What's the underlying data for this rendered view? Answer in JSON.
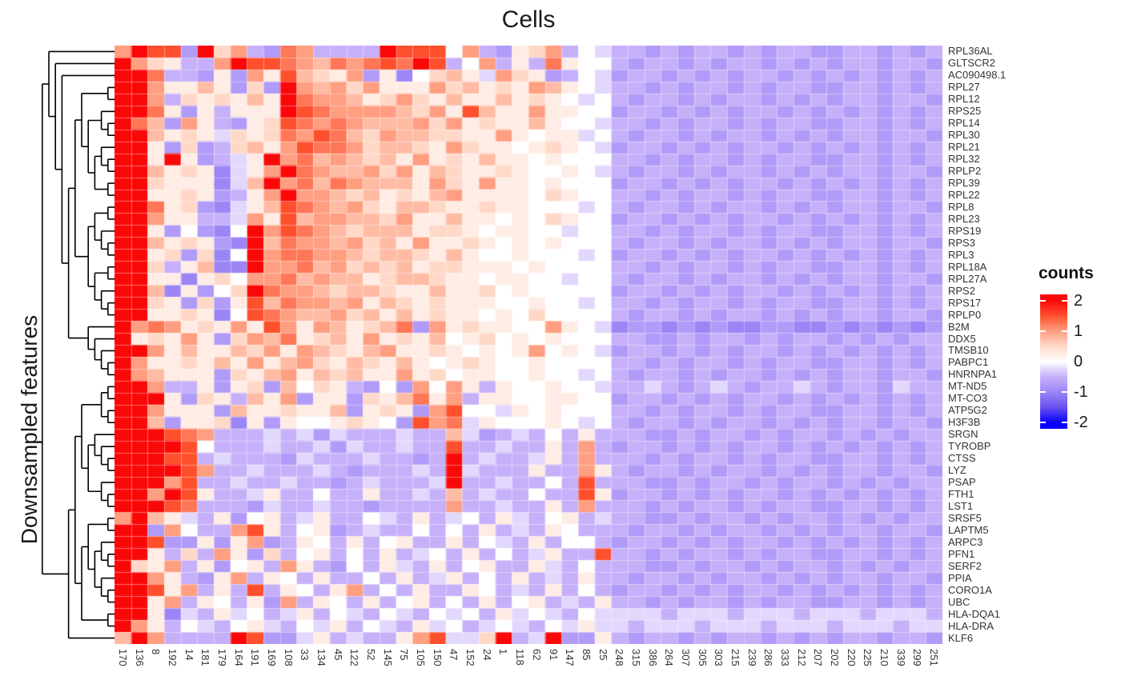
{
  "title": "Cells",
  "ylabel": "Downsampled features",
  "legend": {
    "title": "counts",
    "ticks": [
      {
        "label": "2",
        "value": 2
      },
      {
        "label": "1",
        "value": 1
      },
      {
        "label": "0",
        "value": 0
      },
      {
        "label": "-1",
        "value": -1
      },
      {
        "label": "-2",
        "value": -2
      }
    ],
    "range": [
      -2.2,
      2.2
    ]
  },
  "chart_data": {
    "type": "heatmap",
    "title": "Cells",
    "ylabel": "Downsampled features",
    "legend_title": "counts",
    "value_range": [
      -2,
      2
    ],
    "columns": [
      "170",
      "136",
      "8",
      "192",
      "14",
      "181",
      "179",
      "164",
      "191",
      "169",
      "108",
      "33",
      "134",
      "45",
      "122",
      "52",
      "145",
      "75",
      "105",
      "150",
      "47",
      "152",
      "24",
      "1",
      "118",
      "62",
      "91",
      "147",
      "85",
      "25",
      "248",
      "315",
      "386",
      "264",
      "307",
      "305",
      "303",
      "215",
      "239",
      "286",
      "333",
      "212",
      "207",
      "202",
      "220",
      "225",
      "210",
      "339",
      "299",
      "251"
    ],
    "rows": [
      "RPL36AL",
      "GLTSCR2",
      "AC090498.1",
      "RPL27",
      "RPL12",
      "RPS25",
      "RPL14",
      "RPL30",
      "RPL21",
      "RPL32",
      "RPLP2",
      "RPL39",
      "RPL22",
      "RPL8",
      "RPL23",
      "RPS19",
      "RPS3",
      "RPL3",
      "RPL18A",
      "RPL27A",
      "RPS2",
      "RPS17",
      "RPLP0",
      "B2M",
      "DDX5",
      "TMSB10",
      "PABPC1",
      "HNRNPA1",
      "MT-ND5",
      "MT-CO3",
      "ATP5G2",
      "H3F3B",
      "SRGN",
      "TYROBP",
      "CTSS",
      "LYZ",
      "PSAP",
      "FTH1",
      "LST1",
      "SRSF5",
      "LAPTM5",
      "ARPC3",
      "PFN1",
      "SERF2",
      "PPIA",
      "CORO1A",
      "UBC",
      "HLA-DQA1",
      "HLA-DRA",
      "KLF6"
    ],
    "value_encoding": "each matrix string has one char per column; char set 0123456789ABCDEFG maps to value=(index-8)*0.25, so 0=-2.0, 4=-1.0, 8=0.0, C=1.0, G=2.0 (scaled counts)",
    "matrix": [
      "CGEE5GAC65DC6666GEEE8C659AC68766565665656655665656",
      "GCA966CGEEDCBDCDEDGE68C696D98865665656656565665665",
      "GGD66595C9EBA9C5948AB97CA9568756656565665656565656",
      "GGC99B95A5GCBCAC999CAB9A9CB98766565665656655665656",
      "GGC6A9A9B9GDCCB9ACA9B99B9A987865665656656565665665",
      "GGD9596999GEDCCCCBAC9EB99C998856656565665656565656",
      "GDB5C9659AEDCDCBBBCAC9A99B988766565665656655665656",
      "GGB9A97A9ADCEDBACBBAA99C98997865665656656565665665",
      "GG95A56AB9CEDDCABBA9CA9989A98756656565665656565656",
      "GG9G95679GCDBCBAB9C9A9B998988866565665656655665656",
      "GGB9A9479CGDCBBCAC9BA99A98898765665656656565665665",
      "GGA99947BGCDBDCBBB9CA9C998988856656565665656565656",
      "GG99A9569CGCCBAB9A9BC99998A98866565665656655665656",
      "GGD9A5479BEDCBCA9BBA99A998887865665656656565665665",
      "GGC99667C9EBCCBBAC99B99898A98856656565665656565656",
      "GG958548GCEDCBABBB9AA98998878866565665656655665656",
      "GGB9A954GBDCCBCAB9C99A9898988865665656656565665665",
      "GG9A5A48GCDDCCBABBA9B98898887856656565665656565656",
      "GGA69B44GCCDBCABAB9AA99989888866565665656655665656",
      "GG9949A8CCDBCBB9ABBA998998878865665656656565665665",
      "GGB4958AGDCCBABBA99B99A898888856656565665656565656",
      "GGA95A59EBDCCBC9BA9A999889887866565665656655665656",
      "GG99A948EDCBBCAB9B9A99898A888865665656656565665665",
      "GCDC9A9C9EC9CB9ABD5C9A9988C98745545454455445454545",
      "G9A9C95ACBD9AB9C9A9B89A898988866556566565665656566",
      "GGC9B99BAC9CBA9BC99A98989C898756656565665656565656",
      "GC99A9B9C9BCA9BA9B989A9889888866565665656655665656",
      "GCB9995A9BC9BAB99C9A899889887865665656656565665665",
      "GGC66959A5B8A96585C8C96988988766765676566765665766",
      "GGG95A96B9C5995A9BD9C69988998856656565665656565656",
      "GGC9995B99A99B59A95CE88798988866565665656655665656",
      "GGB599A4959889A985ECD79888987865665656656565665665",
      "GGGEDC66676757666766B75676869666556566565665656566",
      "GGGGE866676675766766E6676696C656656565665656565656",
      "GGGEE676665766676656G6766796C666565665656655665656",
      "GGGGEC66766676566676G7666966C965665656656565665665",
      "GGGCE667667665676667G6676686E666556566565665656566",
      "GGCGE966796686696676B6766866E956656565665656565656",
      "GGGED666576676656666C6676696C666565665656655665656",
      "CGB97695896796687696786976896766556566565665656566",
      "GG5C866CE96895676686869676986665665656656565665665",
      "GGE55959C56986968966968769688656656565665656565656",
      "GG96A6C95A6896869678696867966E66565665656655665656",
      "GA9C695896C965869769689669768666556566565665656566",
      "GGC9659C698696686967968696769665665656656565665665",
      "GGE9C696E69869C68696698676968656656565665656565656",
      "GG9C698695C698696896869689676966565665656655665656",
      "GG947697867968768768786978768777767776777677767776",
      "GC968768976879687697867876879776777677767776777677",
      "BGC6666GE557967669CE77AG67G55965665656656565665665"
    ],
    "colormap": [
      {
        "v": -2.0,
        "c": "#0B00FF"
      },
      {
        "v": -1.5,
        "c": "#6650EE"
      },
      {
        "v": -1.0,
        "c": "#9C86F6"
      },
      {
        "v": -0.5,
        "c": "#C6B0FA"
      },
      {
        "v": -0.25,
        "c": "#E2D7FC"
      },
      {
        "v": 0.0,
        "c": "#FFFFFF"
      },
      {
        "v": 0.5,
        "c": "#FFD8C8"
      },
      {
        "v": 1.0,
        "c": "#FF9E80"
      },
      {
        "v": 1.5,
        "c": "#FF502D"
      },
      {
        "v": 2.0,
        "c": "#FA0808"
      }
    ],
    "row_dendrogram": [
      [
        0,
        [
          1,
          [
            2,
            [
              [
                [
                  [
                    3,
                    4
                  ],
                  [
                    [
                      5,
                      [
                        6,
                        7
                      ]
                    ],
                    [
                      [
                        8,
                        [
                          9,
                          10
                        ]
                      ],
                      [
                        11,
                        12
                      ]
                    ]
                  ]
                ],
                [
                  [
                    [
                      13,
                      14
                    ],
                    [
                      15,
                      [
                        16,
                        17
                      ]
                    ]
                  ],
                  [
                    [
                      18,
                      19
                    ],
                    [
                      20,
                      [
                        21,
                        22
                      ]
                    ]
                  ]
                ]
              ],
              [
                23,
                [
                  24,
                  [
                    25,
                    [
                      26,
                      27
                    ]
                  ]
                ]
              ]
            ]
          ]
        ]
      ],
      [
        [
          [
            [
              [
                28,
                29
              ],
              [
                30,
                31
              ]
            ],
            [
              [
                32,
                [
                  33,
                  [
                    34,
                    35
                  ]
                ]
              ],
              [
                36,
                [
                  37,
                  38
                ]
              ]
            ]
          ],
          [
            [
              [
                39,
                40
              ],
              [
                [
                  41,
                  [
                    42,
                    43
                  ]
                ],
                [
                  44,
                  [
                    45,
                    46
                  ]
                ]
              ]
            ],
            [
              47,
              48
            ]
          ]
        ],
        49
      ]
    ],
    "grid": true,
    "legend_position": "right"
  }
}
